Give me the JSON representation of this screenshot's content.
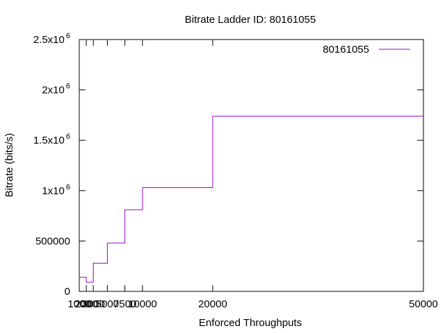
{
  "chart_data": {
    "type": "line",
    "step": true,
    "title": "Bitrate Ladder ID: 80161055",
    "xlabel": "Enforced Throughputs",
    "ylabel": "Bitrate (bits/s)",
    "xlim": [
      1000,
      50000
    ],
    "ylim": [
      0,
      2500000
    ],
    "grid": false,
    "legend_position": "top-right",
    "x_ticks": [
      {
        "value": 1000,
        "label": "1000"
      },
      {
        "value": 2000,
        "label": "2000"
      },
      {
        "value": 3000,
        "label": "3000"
      },
      {
        "value": 5000,
        "label": "5000"
      },
      {
        "value": 7500,
        "label": "7500"
      },
      {
        "value": 10000,
        "label": "10000"
      },
      {
        "value": 20000,
        "label": "20000"
      },
      {
        "value": 50000,
        "label": "50000"
      }
    ],
    "y_ticks": [
      {
        "value": 0,
        "label": "0",
        "exp": ""
      },
      {
        "value": 500000,
        "label": "500000",
        "exp": ""
      },
      {
        "value": 1000000,
        "label": "1x10",
        "exp": "6"
      },
      {
        "value": 1500000,
        "label": "1.5x10",
        "exp": "6"
      },
      {
        "value": 2000000,
        "label": "2x10",
        "exp": "6"
      },
      {
        "value": 2500000,
        "label": "2.5x10",
        "exp": "6"
      }
    ],
    "series": [
      {
        "name": "80161055",
        "color": "#9400d3",
        "x": [
          1000,
          2000,
          3000,
          5000,
          7500,
          10000,
          20000,
          50000
        ],
        "y": [
          140000,
          90000,
          280000,
          480000,
          810000,
          1030000,
          1740000,
          1740000
        ]
      }
    ]
  }
}
